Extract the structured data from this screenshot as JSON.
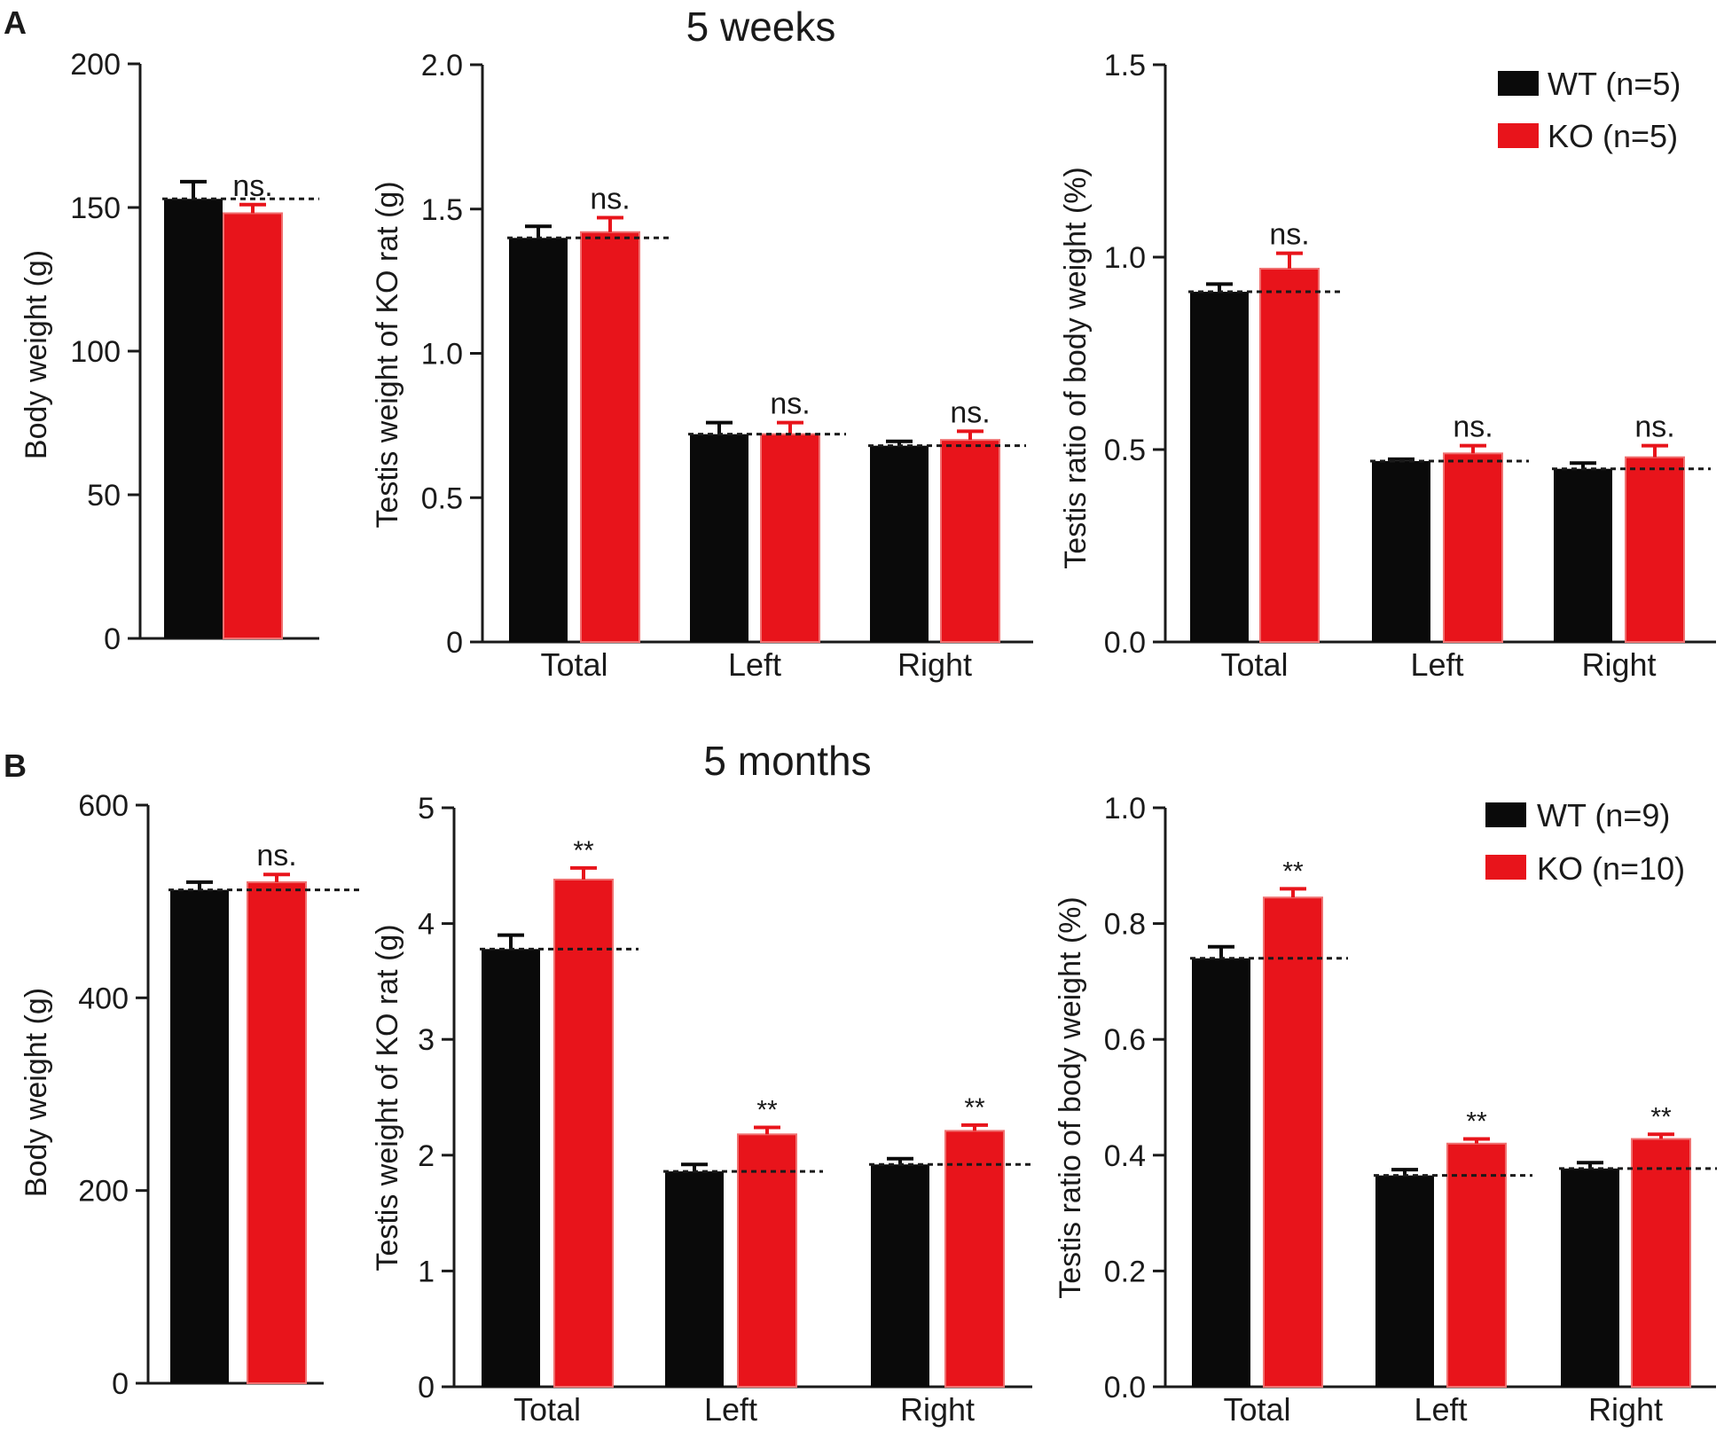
{
  "colors": {
    "wt": "#0a0a0a",
    "ko": "#e8141b",
    "ko_stroke": "#f07070",
    "axis": "#1a1a1a",
    "ko_text": "#e8141b"
  },
  "panels": [
    {
      "letter": "A",
      "title": "5  weeks",
      "legend": {
        "wt": "WT (n=5)",
        "ko": "KO (n=5)"
      }
    },
    {
      "letter": "B",
      "title": "5  months",
      "legend": {
        "wt": "WT (n=9)",
        "ko": "KO (n=10)"
      }
    }
  ],
  "chart_data": [
    {
      "id": "a-body",
      "type": "bar",
      "panel": "A",
      "title": "",
      "xlabel": "",
      "ylabel": "Body  weight (g)",
      "ylim": [
        0,
        200
      ],
      "yticks": [
        0,
        50,
        100,
        150,
        200
      ],
      "categories": [
        ""
      ],
      "series": [
        {
          "name": "WT (n=5)",
          "values": [
            153
          ],
          "errors": [
            6
          ]
        },
        {
          "name": "KO (n=5)",
          "values": [
            148
          ],
          "errors": [
            3
          ]
        }
      ],
      "annotations": [
        "ns."
      ]
    },
    {
      "id": "a-testis",
      "type": "bar",
      "panel": "A",
      "title": "",
      "xlabel": "",
      "ylabel": "Testis weight of KO rat (g)",
      "ylim": [
        0,
        2.0
      ],
      "yticks": [
        "0",
        "0.5",
        "1.0",
        "1.5",
        "2.0"
      ],
      "categories": [
        "Total",
        "Left",
        "Right"
      ],
      "series": [
        {
          "name": "WT (n=5)",
          "values": [
            1.4,
            0.72,
            0.68
          ],
          "errors": [
            0.04,
            0.04,
            0.015
          ]
        },
        {
          "name": "KO (n=5)",
          "values": [
            1.42,
            0.72,
            0.7
          ],
          "errors": [
            0.05,
            0.04,
            0.03
          ]
        }
      ],
      "annotations": [
        "ns.",
        "ns.",
        "ns."
      ]
    },
    {
      "id": "a-ratio",
      "type": "bar",
      "panel": "A",
      "title": "",
      "xlabel": "",
      "ylabel": "Testis ratio of body  weight (%)",
      "ylim": [
        0,
        1.5
      ],
      "yticks": [
        "0.0",
        "0.5",
        "1.0",
        "1.5"
      ],
      "categories": [
        "Total",
        "Left",
        "Right"
      ],
      "series": [
        {
          "name": "WT (n=5)",
          "values": [
            0.91,
            0.47,
            0.45
          ],
          "errors": [
            0.02,
            0.005,
            0.015
          ]
        },
        {
          "name": "KO (n=5)",
          "values": [
            0.97,
            0.49,
            0.48
          ],
          "errors": [
            0.04,
            0.02,
            0.03
          ]
        }
      ],
      "annotations": [
        "ns.",
        "ns.",
        "ns."
      ]
    },
    {
      "id": "b-body",
      "type": "bar",
      "panel": "B",
      "title": "",
      "xlabel": "",
      "ylabel": "Body  weight (g)",
      "ylim": [
        0,
        600
      ],
      "yticks": [
        0,
        200,
        400,
        600
      ],
      "categories": [
        ""
      ],
      "series": [
        {
          "name": "WT (n=9)",
          "values": [
            512
          ],
          "errors": [
            8
          ]
        },
        {
          "name": "KO (n=10)",
          "values": [
            520
          ],
          "errors": [
            8
          ]
        }
      ],
      "annotations": [
        "ns."
      ]
    },
    {
      "id": "b-testis",
      "type": "bar",
      "panel": "B",
      "title": "",
      "xlabel": "",
      "ylabel": "Testis weight of KO rat (g)",
      "ylim": [
        0,
        5
      ],
      "yticks": [
        0,
        1,
        2,
        3,
        4,
        5
      ],
      "categories": [
        "Total",
        "Left",
        "Right"
      ],
      "series": [
        {
          "name": "WT (n=9)",
          "values": [
            3.78,
            1.86,
            1.92
          ],
          "errors": [
            0.12,
            0.06,
            0.05
          ]
        },
        {
          "name": "KO (n=10)",
          "values": [
            4.38,
            2.18,
            2.21
          ],
          "errors": [
            0.1,
            0.06,
            0.05
          ]
        }
      ],
      "annotations": [
        "**",
        "**",
        "**"
      ]
    },
    {
      "id": "b-ratio",
      "type": "bar",
      "panel": "B",
      "title": "",
      "xlabel": "",
      "ylabel": "Testis ratio of body  weight (%)",
      "ylim": [
        0,
        1.0
      ],
      "yticks": [
        "0.0",
        "0.2",
        "0.4",
        "0.6",
        "0.8",
        "1.0"
      ],
      "categories": [
        "Total",
        "Left",
        "Right"
      ],
      "series": [
        {
          "name": "WT (n=9)",
          "values": [
            0.74,
            0.365,
            0.377
          ],
          "errors": [
            0.02,
            0.01,
            0.01
          ]
        },
        {
          "name": "KO (n=10)",
          "values": [
            0.845,
            0.42,
            0.428
          ],
          "errors": [
            0.015,
            0.008,
            0.008
          ]
        }
      ],
      "annotations": [
        "**",
        "**",
        "**"
      ]
    }
  ]
}
